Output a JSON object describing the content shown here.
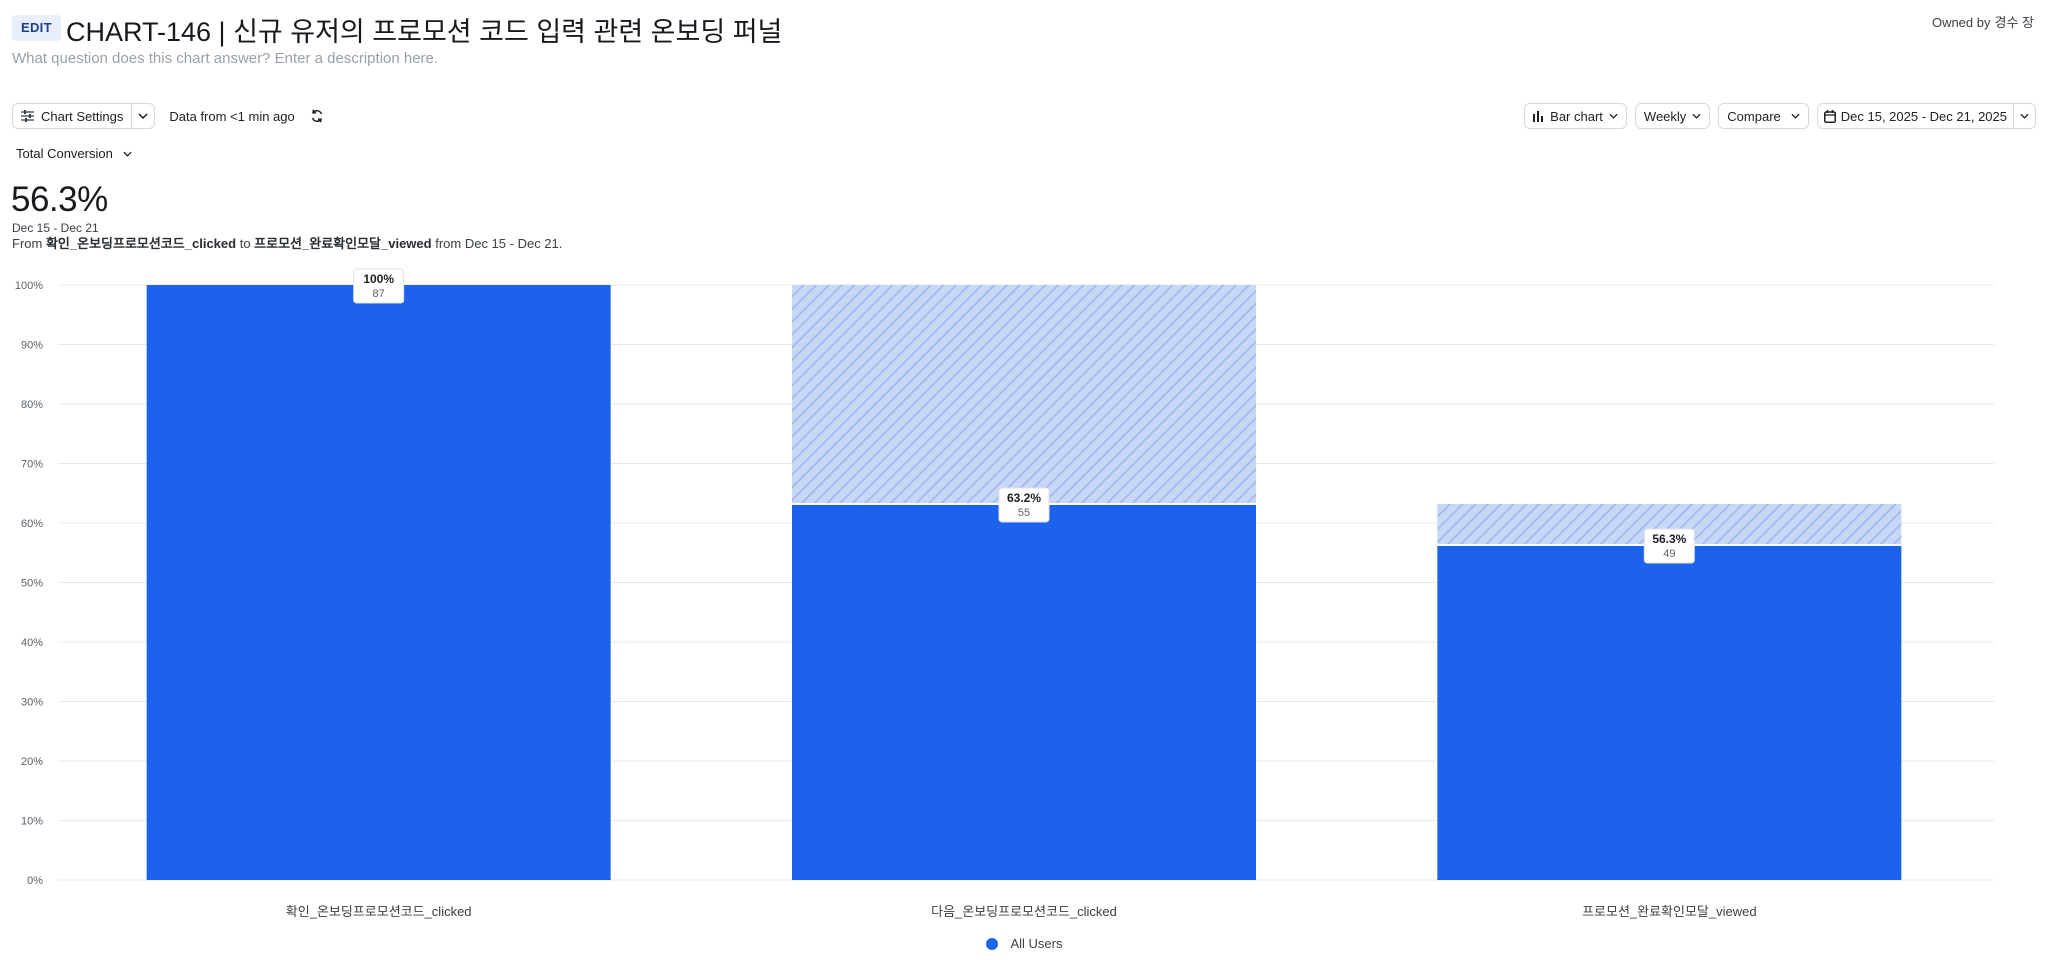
{
  "header": {
    "edit_label": "EDIT",
    "title": "CHART-146 | 신규 유저의 프로모션 코드 입력 관련 온보딩 퍼널",
    "owner_prefix": "Owned by",
    "owner_name": "경수 장",
    "description_placeholder": "What question does this chart answer? Enter a description here."
  },
  "toolbar": {
    "chart_settings_label": "Chart Settings",
    "data_from": "Data from <1 min ago",
    "chart_type_label": "Bar chart",
    "interval_label": "Weekly",
    "compare_label": "Compare",
    "date_range_label": "Dec 15, 2025 - Dec 21, 2025"
  },
  "summary": {
    "metric_label": "Total Conversion",
    "value": "56.3%",
    "date_range": "Dec 15 - Dec 21",
    "from_prefix": "From",
    "from_event": "확인_온보딩프로모션코드_clicked",
    "to_word": "to",
    "to_event": "프로모션_완료확인모달_viewed",
    "range_suffix": "from Dec 15 - Dec 21."
  },
  "chart_data": {
    "type": "bar",
    "categories": [
      "확인_온보딩프로모션코드_clicked",
      "다음_온보딩프로모션코드_clicked",
      "프로모션_완료확인모달_viewed"
    ],
    "series": [
      {
        "name": "All Users",
        "values": [
          100,
          63.2,
          56.3
        ],
        "counts": [
          87,
          55,
          49
        ],
        "value_labels": [
          "100%",
          "63.2%",
          "56.3%"
        ],
        "dropoff_from": [
          null,
          100,
          63.2
        ]
      }
    ],
    "ylim": [
      0,
      100
    ],
    "y_ticks": [
      "0%",
      "10%",
      "20%",
      "30%",
      "40%",
      "50%",
      "60%",
      "70%",
      "80%",
      "90%",
      "100%"
    ],
    "grid": true,
    "legend_position": "bottom-center",
    "colors": {
      "bar": "#1d62ec",
      "dropoff": "#c6d5f6",
      "dropoff_stripe": "#a6bdf1",
      "grid": "#e6e8eb"
    }
  }
}
